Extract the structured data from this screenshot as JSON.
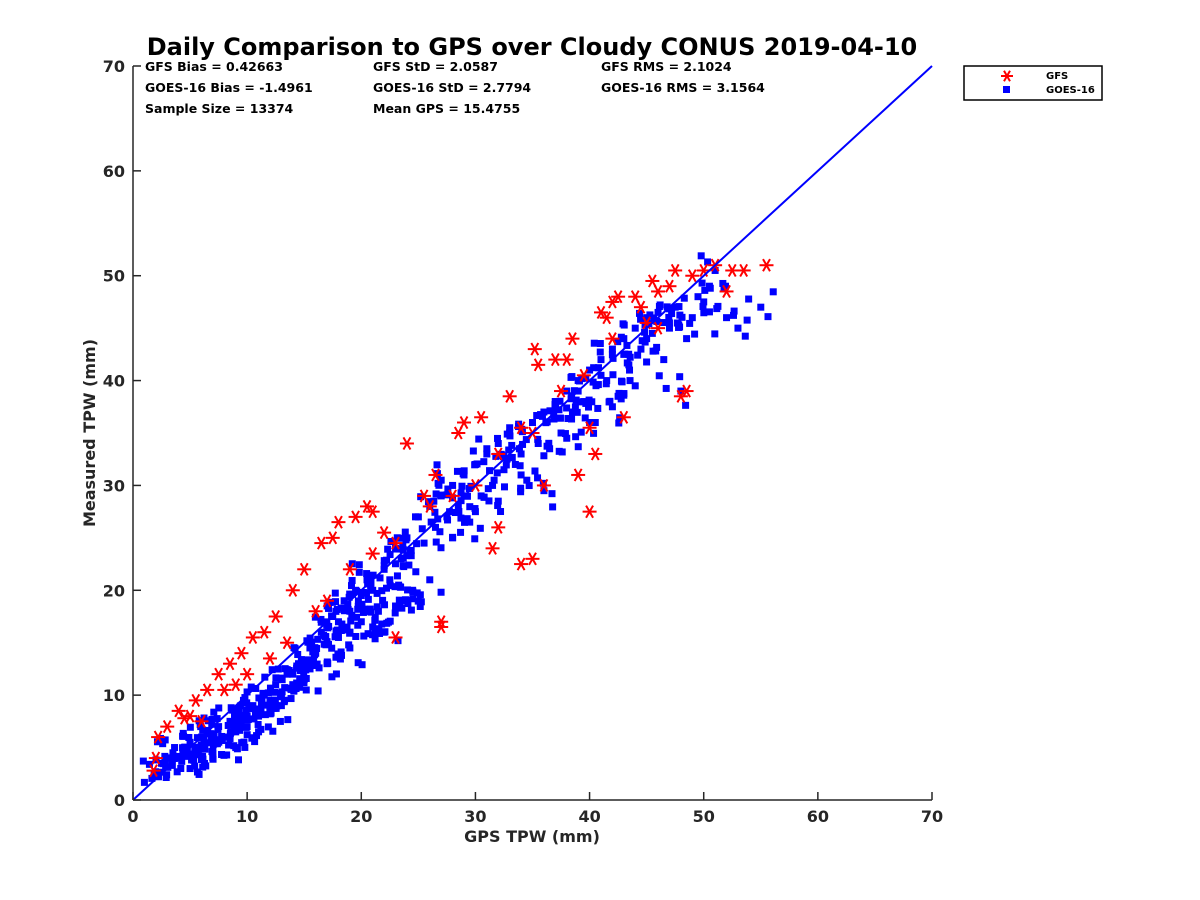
{
  "chart_data": {
    "type": "scatter",
    "title": "Daily Comparison to GPS over Cloudy CONUS 2019-04-10",
    "xlabel": "GPS TPW (mm)",
    "ylabel": "Measured TPW (mm)",
    "xlim": [
      0,
      70
    ],
    "ylim": [
      0,
      70
    ],
    "xticks": [
      "0",
      "10",
      "20",
      "30",
      "40",
      "50",
      "60",
      "70"
    ],
    "yticks": [
      "0",
      "10",
      "20",
      "30",
      "40",
      "50",
      "60",
      "70"
    ],
    "grid": false,
    "legend_position": "outside-top-right",
    "reference_line": {
      "x": [
        0,
        70
      ],
      "y": [
        0,
        70
      ],
      "color": "#0000ff"
    },
    "statistics": [
      "GFS Bias = 0.42663",
      "GFS StD = 2.0587",
      "GFS RMS = 2.1024",
      "GOES-16 Bias = -1.4961",
      "GOES-16 StD = 2.7794",
      "GOES-16 RMS = 3.1564",
      "Sample Size = 13374",
      "Mean GPS = 15.4755"
    ],
    "series": [
      {
        "name": "GFS",
        "color": "#ff0000",
        "marker": "asterisk",
        "x": [
          1.8,
          2.2,
          3.0,
          4.0,
          4.5,
          5.5,
          6.5,
          7.5,
          8.5,
          9.5,
          10.5,
          11.5,
          12.5,
          14.0,
          15.0,
          16.5,
          17.5,
          18.0,
          19.5,
          20.5,
          21.0,
          22.0,
          23.0,
          24.0,
          25.5,
          26.5,
          27.0,
          28.5,
          29.0,
          30.5,
          31.5,
          32.0,
          33.0,
          34.0,
          35.0,
          35.2,
          35.5,
          36.0,
          37.0,
          37.5,
          38.5,
          39.0,
          39.5,
          40.0,
          40.5,
          41.0,
          41.5,
          42.0,
          42.5,
          43.0,
          44.0,
          44.5,
          45.0,
          45.5,
          46.0,
          47.0,
          47.5,
          48.0,
          48.5,
          49.0,
          50.0,
          51.0,
          52.0,
          52.5,
          53.5,
          55.5,
          27.0,
          35.0,
          40.0,
          32.0,
          28.0,
          21.0,
          17.0,
          13.5,
          10.0,
          6.0,
          8.0,
          12.0,
          16.0,
          19.0,
          23.0,
          26.0,
          30.0,
          34.0,
          38.0,
          42.0,
          46.0,
          2.0,
          5.0,
          9.0
        ],
        "y": [
          2.8,
          6.0,
          7.0,
          8.5,
          7.8,
          9.5,
          10.5,
          12.0,
          13.0,
          14.0,
          15.5,
          16.0,
          17.5,
          20.0,
          22.0,
          24.5,
          25.0,
          26.5,
          27.0,
          28.0,
          27.5,
          25.5,
          15.5,
          34.0,
          29.0,
          31.0,
          17.0,
          35.0,
          36.0,
          36.5,
          24.0,
          26.0,
          38.5,
          22.5,
          23.0,
          43.0,
          41.5,
          30.0,
          42.0,
          39.0,
          44.0,
          31.0,
          40.5,
          27.5,
          33.0,
          46.5,
          46.0,
          47.5,
          48.0,
          36.5,
          48.0,
          47.0,
          45.5,
          49.5,
          48.5,
          49.0,
          50.5,
          38.5,
          39.0,
          50.0,
          50.5,
          51.0,
          48.5,
          50.5,
          50.5,
          51.0,
          16.5,
          35.0,
          35.5,
          33.0,
          29.0,
          23.5,
          19.0,
          15.0,
          12.0,
          7.5,
          10.5,
          13.5,
          18.0,
          22.0,
          24.5,
          28.0,
          30.0,
          35.5,
          42.0,
          44.0,
          45.0,
          4.0,
          8.0,
          11.0
        ]
      },
      {
        "name": "GOES-16",
        "color": "#0000ff",
        "marker": "square",
        "x": [
          2.0,
          2.5,
          3.0,
          3.5,
          4.0,
          4.5,
          5.0,
          5.5,
          6.0,
          6.5,
          7.0,
          7.5,
          8.0,
          8.5,
          9.0,
          9.5,
          10.0,
          10.5,
          11.0,
          11.5,
          12.0,
          12.5,
          13.0,
          13.5,
          14.0,
          14.5,
          15.0,
          15.5,
          16.0,
          16.5,
          17.0,
          17.5,
          18.0,
          18.5,
          19.0,
          19.5,
          20.0,
          20.5,
          21.0,
          21.5,
          22.0,
          22.5,
          23.0,
          23.5,
          24.0,
          24.5,
          25.0,
          25.5,
          26.0,
          26.5,
          27.0,
          27.5,
          28.0,
          28.5,
          29.0,
          29.5,
          30.0,
          30.5,
          31.0,
          31.5,
          32.0,
          32.5,
          33.0,
          33.5,
          34.0,
          34.5,
          35.0,
          35.5,
          36.0,
          36.5,
          37.0,
          37.5,
          38.0,
          38.5,
          39.0,
          39.5,
          40.0,
          40.5,
          41.0,
          41.5,
          42.0,
          42.5,
          43.0,
          43.5,
          44.0,
          44.5,
          45.0,
          45.5,
          46.0,
          46.5,
          47.0,
          47.5,
          48.0,
          48.5,
          49.0,
          49.5,
          50.0,
          50.5,
          51.0,
          52.0,
          53.0,
          55.0,
          6.0,
          8.0,
          10.0,
          12.0,
          14.0,
          16.0,
          18.0,
          20.0,
          22.0,
          24.0,
          26.0,
          28.0,
          30.0,
          32.0,
          34.0,
          36.0,
          38.0,
          40.0,
          42.0,
          44.0,
          5.0,
          7.0,
          9.0,
          11.0,
          13.0,
          15.0,
          17.0,
          19.0,
          21.0,
          23.0,
          27.0,
          29.0,
          31.0,
          33.0,
          37.0,
          39.0,
          41.0,
          43.0,
          45.0,
          47.0
        ],
        "y": [
          2.5,
          3.5,
          4.0,
          4.5,
          4.0,
          5.0,
          5.5,
          4.5,
          6.0,
          6.5,
          5.5,
          7.0,
          6.0,
          7.5,
          6.5,
          8.0,
          7.0,
          9.0,
          8.0,
          10.0,
          9.0,
          11.0,
          10.0,
          12.0,
          11.0,
          13.0,
          12.5,
          14.5,
          14.0,
          16.0,
          15.0,
          17.5,
          17.0,
          19.0,
          18.0,
          20.0,
          19.5,
          21.0,
          20.0,
          18.0,
          22.0,
          21.0,
          24.0,
          23.0,
          25.0,
          20.0,
          27.0,
          24.5,
          28.0,
          26.0,
          29.0,
          27.0,
          30.0,
          28.0,
          31.0,
          26.5,
          32.0,
          29.0,
          33.0,
          30.0,
          34.0,
          31.5,
          35.0,
          32.0,
          33.0,
          30.5,
          36.0,
          34.0,
          37.0,
          33.5,
          38.0,
          35.0,
          39.0,
          37.0,
          40.0,
          38.0,
          41.0,
          36.0,
          42.0,
          40.0,
          43.0,
          38.5,
          44.0,
          41.0,
          45.0,
          43.0,
          46.0,
          44.5,
          46.5,
          42.0,
          45.0,
          47.0,
          39.0,
          44.0,
          46.0,
          48.0,
          47.5,
          49.0,
          50.5,
          46.0,
          45.0,
          47.0,
          4.0,
          6.0,
          8.0,
          9.5,
          12.0,
          14.0,
          15.5,
          17.0,
          16.0,
          19.0,
          21.0,
          25.0,
          27.5,
          28.5,
          31.0,
          29.5,
          34.5,
          36.0,
          37.5,
          39.5,
          3.0,
          4.5,
          5.0,
          6.5,
          9.0,
          11.5,
          13.0,
          14.5,
          16.5,
          18.5,
          30.5,
          29.0,
          33.5,
          35.5,
          38.0,
          39.0,
          40.5,
          42.5,
          44.0,
          45.5
        ]
      }
    ]
  }
}
